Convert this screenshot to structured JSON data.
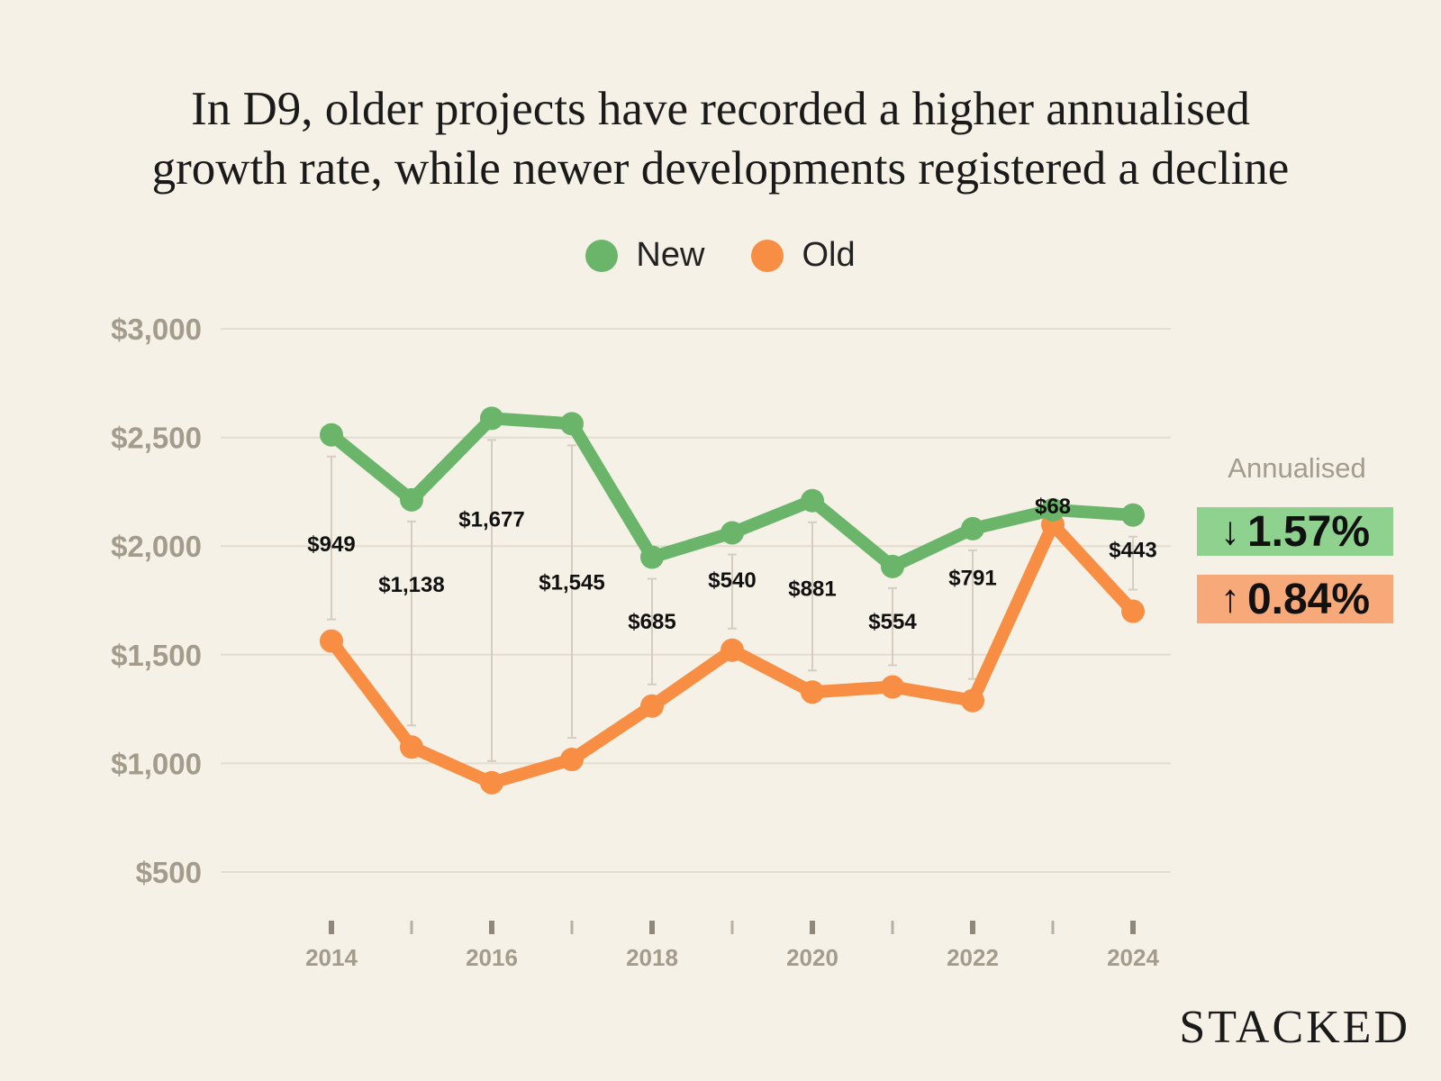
{
  "title_line1": "In D9, older projects have recorded a higher annualised",
  "title_line2": "growth rate, while newer developments registered a decline",
  "legend": {
    "new_label": "New",
    "old_label": "Old"
  },
  "annualised": {
    "heading": "Annualised",
    "new_arrow": "↓",
    "new_value": "1.57%",
    "old_arrow": "↑",
    "old_value": "0.84%"
  },
  "brand": "STACKED",
  "colors": {
    "new": "#6ab56a",
    "old": "#f78e43",
    "background": "#f5f1e6",
    "grid": "#e4ddd0",
    "axis_text": "#a39c8d",
    "spread_line": "#d5cec0",
    "new_badge": "#8fd18f",
    "old_badge": "#f7a97a"
  },
  "chart_data": {
    "type": "line",
    "title": "In D9, older projects have recorded a higher annualised growth rate, while newer developments registered a decline",
    "x": [
      2014,
      2015,
      2016,
      2017,
      2018,
      2019,
      2020,
      2021,
      2022,
      2023,
      2024
    ],
    "x_tick_labels": [
      "2014",
      "",
      "2016",
      "",
      "2018",
      "",
      "2020",
      "",
      "2022",
      "",
      "2024"
    ],
    "ylim": [
      500,
      3000
    ],
    "y_ticks": [
      500,
      1000,
      1500,
      2000,
      2500,
      3000
    ],
    "y_tick_labels": [
      "$500",
      "$1,000",
      "$1,500",
      "$2,000",
      "$2,500",
      "$3,000"
    ],
    "grid": true,
    "legend_position": "top-center",
    "series": [
      {
        "name": "New",
        "values": [
          2512,
          2213,
          2588,
          2563,
          1949,
          2061,
          2209,
          1906,
          2080,
          2167,
          2143
        ]
      },
      {
        "name": "Old",
        "values": [
          1563,
          1075,
          911,
          1018,
          1264,
          1521,
          1328,
          1352,
          1289,
          2099,
          1700
        ]
      }
    ],
    "gap_labels": [
      "$949",
      "$1,138",
      "$1,677",
      "$1,545",
      "$685",
      "$540",
      "$881",
      "$554",
      "$791",
      "$68",
      "$443"
    ],
    "gap_label_values": [
      1975,
      1790,
      2090,
      1800,
      1620,
      1810,
      1770,
      1620,
      1820,
      2150,
      1950
    ]
  }
}
